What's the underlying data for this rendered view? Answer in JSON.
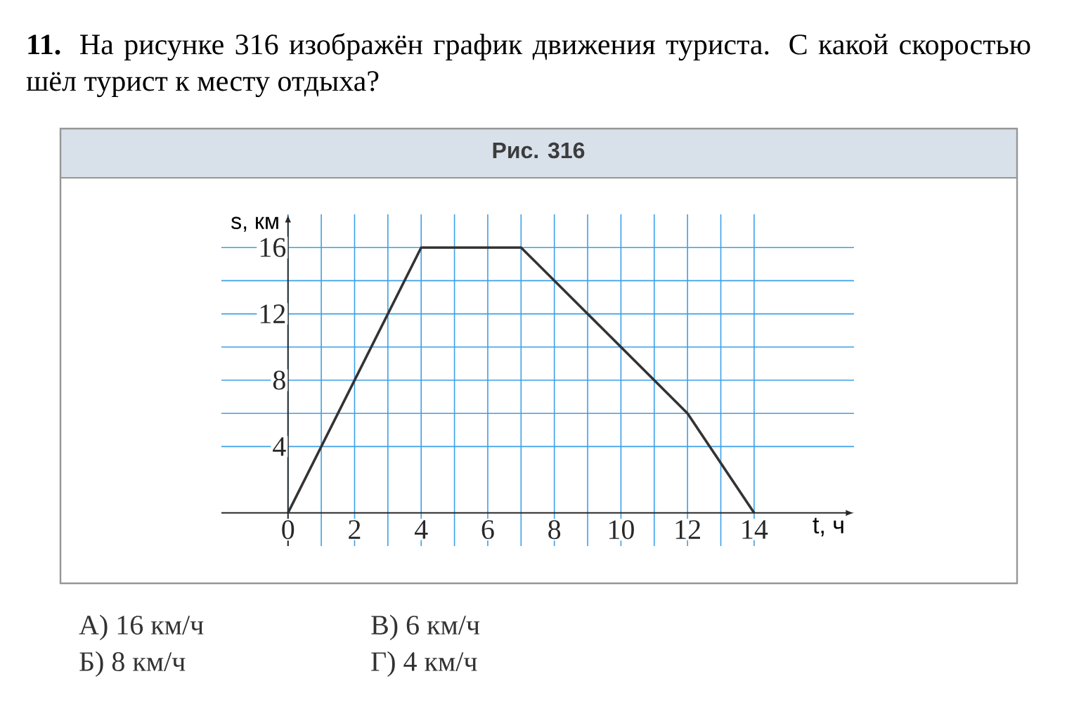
{
  "chart_data": {
    "type": "line",
    "title": "**11.** На рисунке 316 изображён график движения туриста. С какой скоростью шёл турист к месту отдыха?",
    "subtitle": "Рис. 316",
    "xlabel": "t, ч",
    "ylabel": "s, км",
    "x": [
      0,
      4,
      7,
      12,
      14
    ],
    "series": [
      {
        "color": "#333333",
        "values": [
          0,
          16,
          16,
          6,
          0
        ]
      }
    ],
    "xlim": [
      -2,
      17
    ],
    "ylim": [
      -2,
      18
    ],
    "xticks": [
      0,
      2,
      4,
      6,
      8,
      10,
      12,
      14
    ],
    "yticks": [
      4,
      8,
      12,
      16
    ],
    "grid": true,
    "annotations": [
      "А) 16 км/ч",
      "Б) 8 км/ч",
      "В) 6 км/ч",
      "Г) 4 км/ч"
    ]
  }
}
